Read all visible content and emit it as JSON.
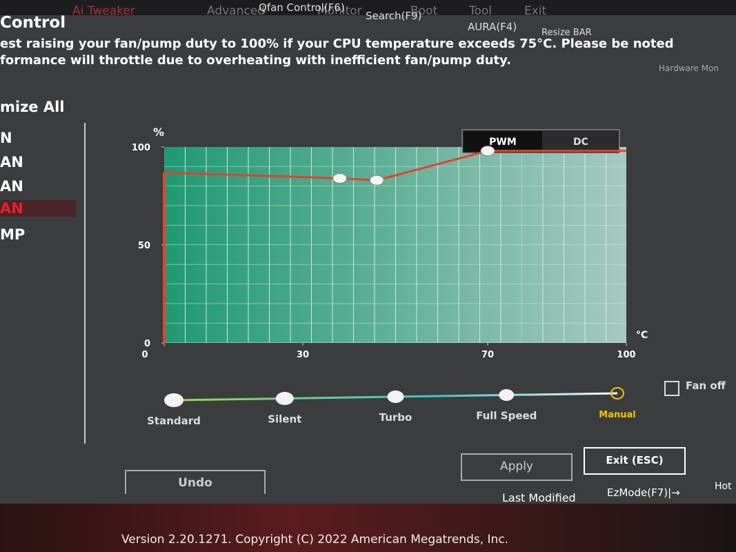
{
  "top_menu": {
    "tabs": [
      "Ai Tweaker",
      "Advanced",
      "Monitor",
      "Boot",
      "Tool",
      "Exit"
    ],
    "hotkeys": [
      "Qfan Control(F6)",
      "Search(F9)",
      "AURA(F4)",
      "Resize BAR"
    ],
    "right": "Hardware Mon"
  },
  "title": "Control",
  "notice": [
    "est raising your fan/pump duty to 100% if your CPU temperature exceeds 75°C. Please be noted",
    "formance will throttle due to overheating with inefficient fan/pump duty."
  ],
  "sidebar": {
    "optimize": "mize All",
    "items": [
      "N",
      "AN",
      "AN",
      "AN",
      "MP"
    ]
  },
  "mode_toggle": [
    "PWM",
    "DC"
  ],
  "chart_data": {
    "type": "line",
    "y_label": "%",
    "x_label": "°C",
    "x": [
      0,
      38,
      46,
      70,
      100
    ],
    "series": [
      {
        "color": "#e8402c",
        "values": [
          87,
          84,
          83,
          98,
          98
        ]
      }
    ],
    "xlim": [
      0,
      100
    ],
    "ylim": [
      0,
      100
    ],
    "xticks": [
      0,
      30,
      70,
      100
    ],
    "yticks": [
      0,
      50,
      100
    ]
  },
  "presets": [
    "Standard",
    "Silent",
    "Turbo",
    "Full Speed",
    "Manual"
  ],
  "fan_off": "Fan off",
  "buttons": {
    "apply": "Apply",
    "exit": "Exit (ESC)",
    "undo": "Undo"
  },
  "footer": {
    "last_modified": "Last Modified",
    "ezmode": "EzMode(F7)|→",
    "hot": "Hot",
    "version": "Version 2.20.1271. Copyright (C) 2022 American Megatrends, Inc."
  }
}
